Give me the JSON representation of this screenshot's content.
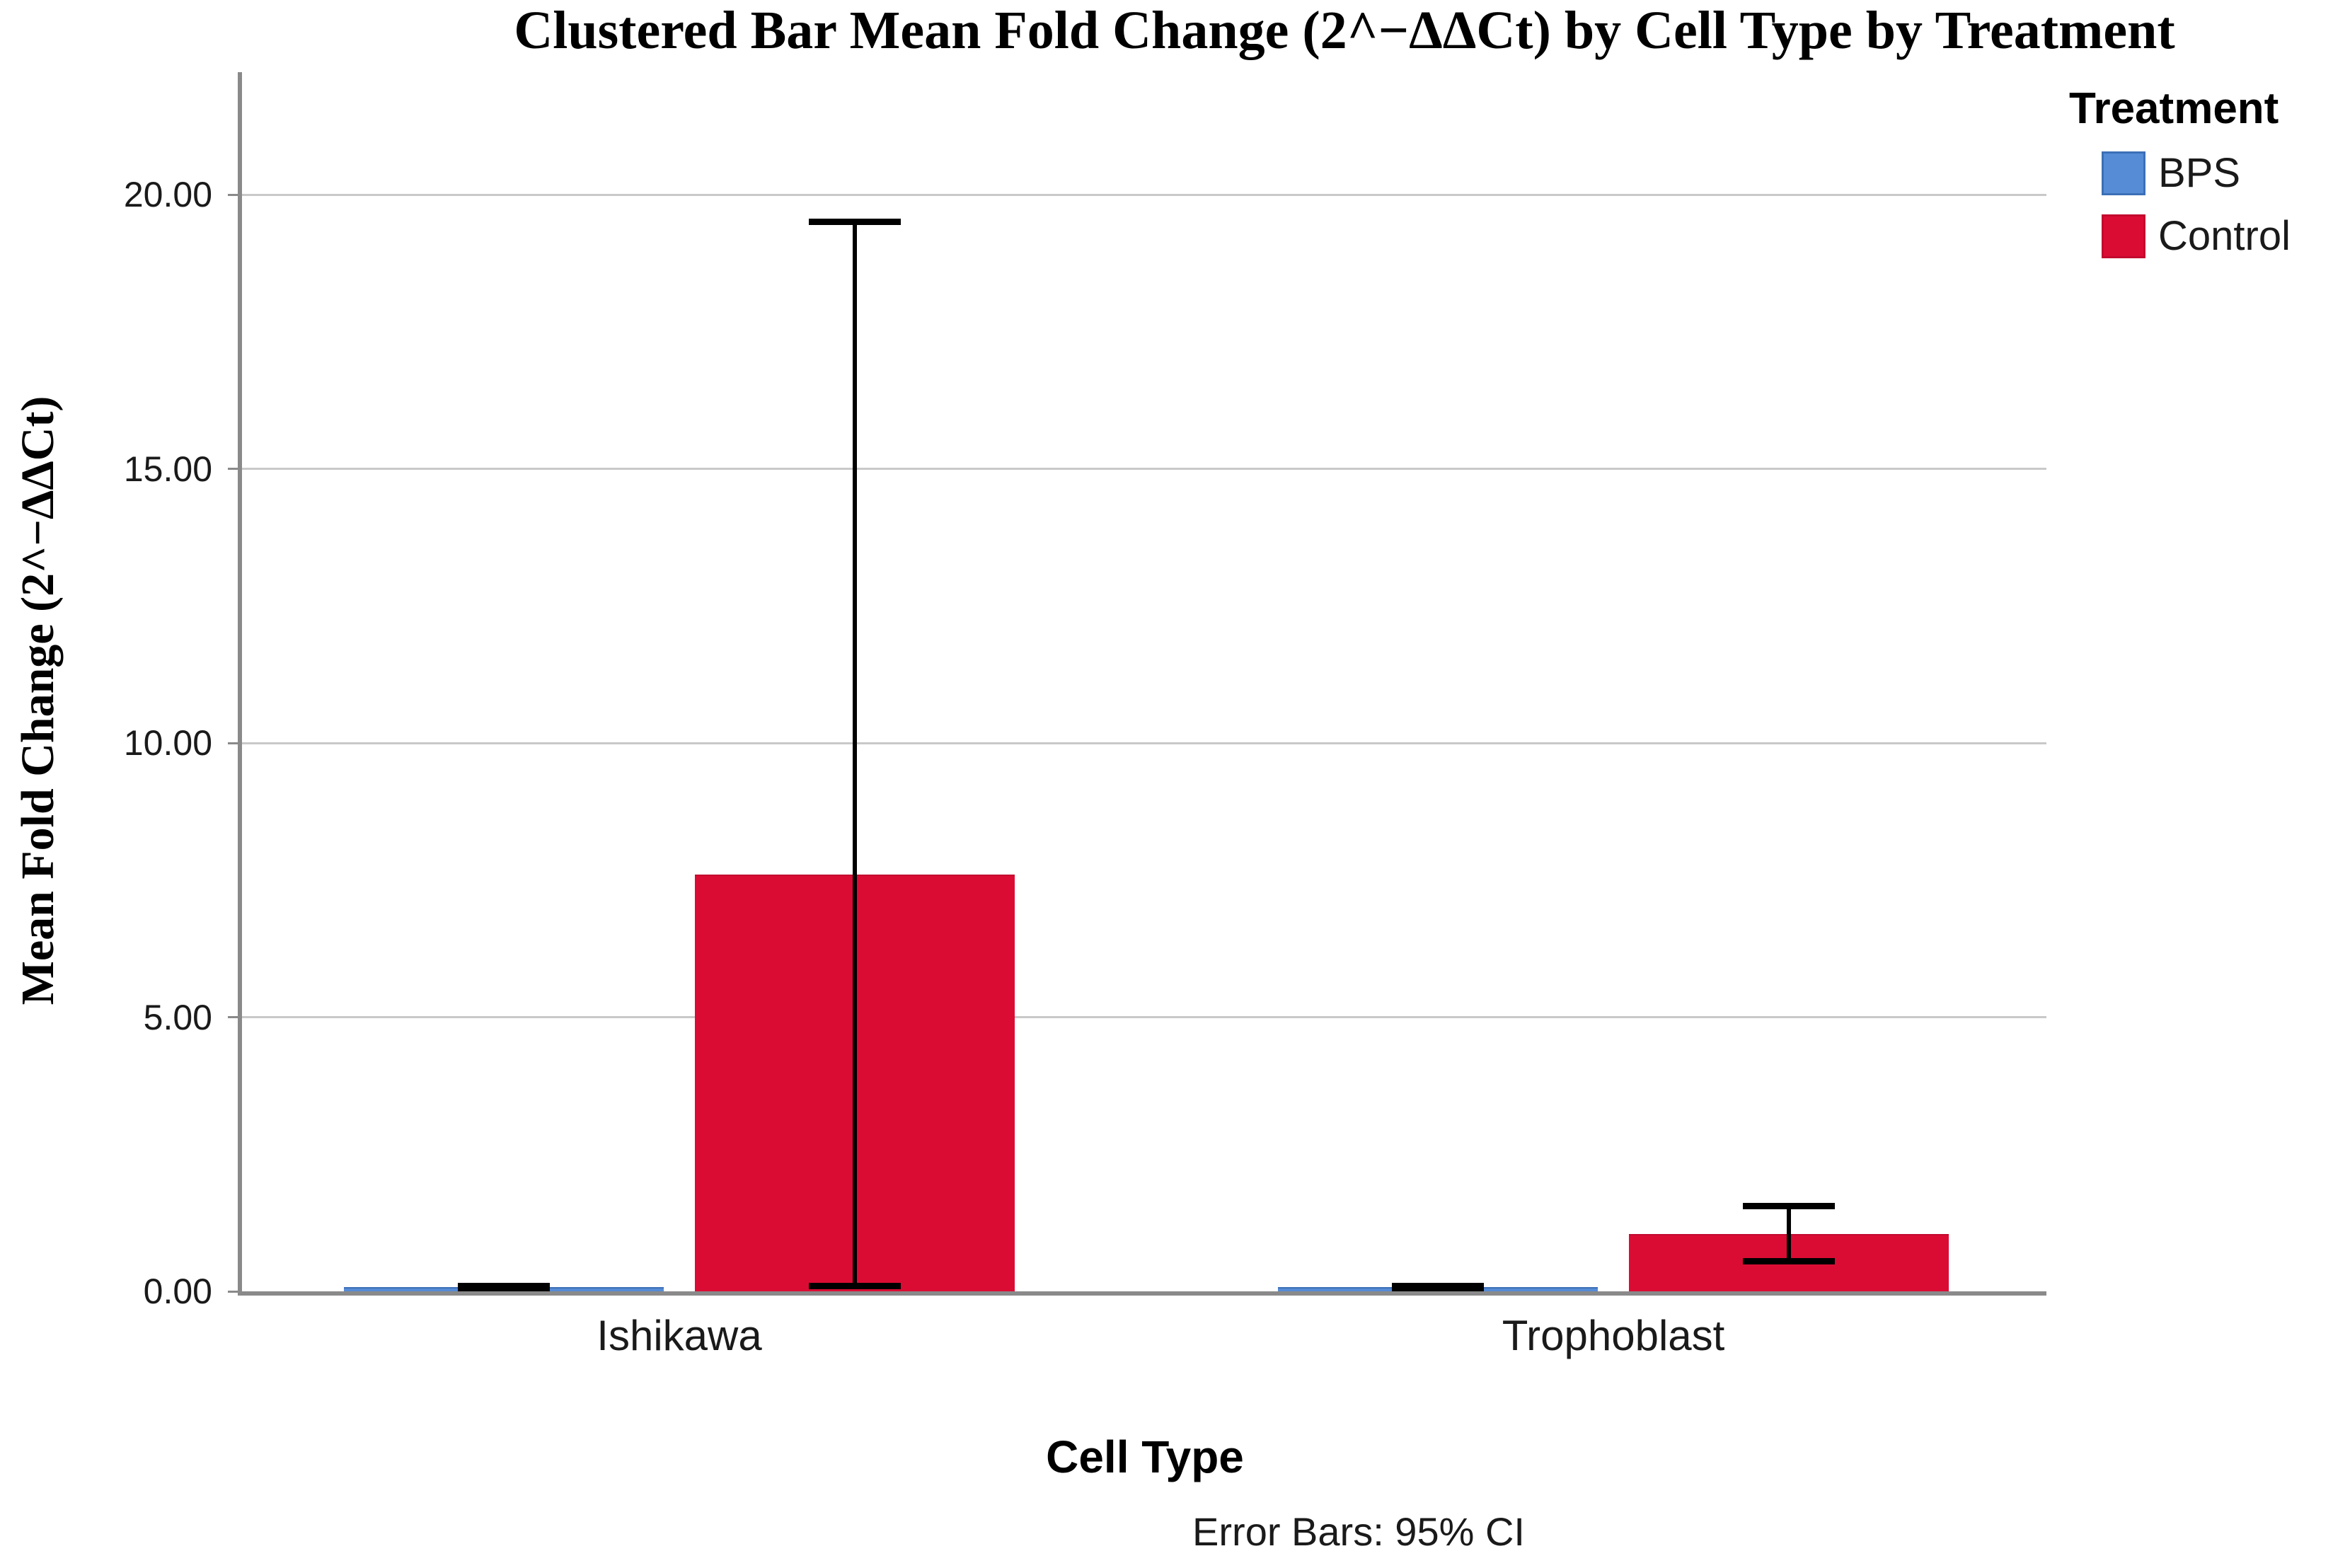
{
  "title": "Clustered Bar Mean Fold Change (2^−ΔΔCt) by Cell Type by Treatment",
  "colors": {
    "background": "#FFFFFF",
    "axis": "#8A8A8A",
    "gridline": "#C9C9C9",
    "error_bar": "#000000",
    "text": "#1A1A1A",
    "bps_fill": "#568BD5",
    "bps_border": "#3C6FB6",
    "control_fill": "#DB0C34",
    "control_border": "#C30A2E"
  },
  "chart_data": {
    "type": "bar",
    "title": "Clustered Bar Mean Fold Change (2^−ΔΔCt) by Cell Type by Treatment",
    "xlabel": "Cell Type",
    "ylabel": "Mean Fold Change (2^−ΔΔCt)",
    "footnote": "Error Bars: 95% CI",
    "legend_title": "Treatment",
    "legend_position": "top-right",
    "categories": [
      "Ishikawa",
      "Trophoblast"
    ],
    "series": [
      {
        "name": "BPS",
        "color": "#568BD5",
        "border": "#3C6FB6",
        "values": [
          0.07,
          0.07
        ],
        "ci_low": [
          0.0,
          0.0
        ],
        "ci_high": [
          0.1,
          0.1
        ]
      },
      {
        "name": "Control",
        "color": "#DB0C34",
        "border": "#C30A2E",
        "values": [
          7.6,
          1.05
        ],
        "ci_low": [
          0.1,
          0.55
        ],
        "ci_high": [
          19.5,
          1.55
        ]
      }
    ],
    "ylim": [
      0,
      22.2
    ],
    "yticks": [
      0,
      5,
      10,
      15,
      20
    ],
    "ytick_labels": [
      "0.00",
      "5.00",
      "10.00",
      "15.00",
      "20.00"
    ],
    "grid": "horizontal",
    "error_bars": "95% CI"
  }
}
